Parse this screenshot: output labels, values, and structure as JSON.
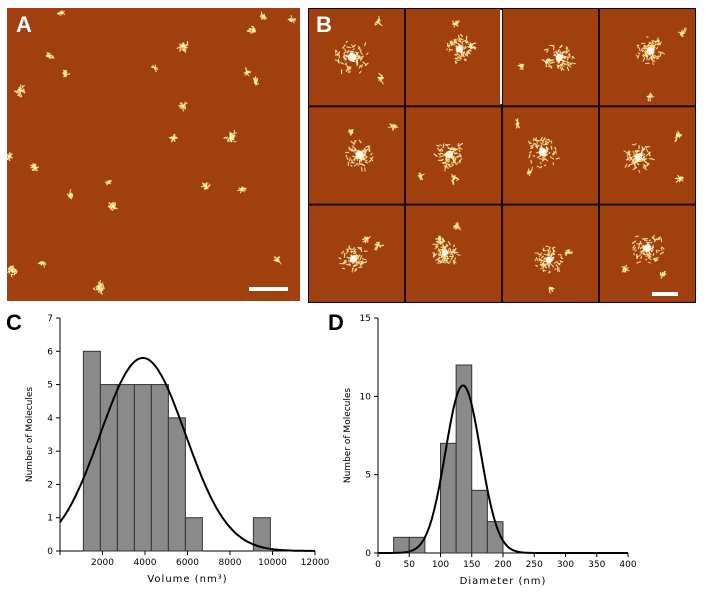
{
  "panels": {
    "a": {
      "letter": "A"
    },
    "b": {
      "letter": "B"
    },
    "c": {
      "letter": "C"
    },
    "d": {
      "letter": "D"
    }
  },
  "colors": {
    "afm_background": "#a0400e",
    "afm_particle": "#ffe9a0",
    "bar_fill": "#8a8a8a",
    "bar_stroke": "#333333",
    "curve": "#000000"
  },
  "chart_data": [
    {
      "type": "bar",
      "panel": "C",
      "xlabel": "Volume (nm³)",
      "ylabel": "Number of Molecules",
      "xlim": [
        0,
        12000
      ],
      "ylim": [
        0,
        7
      ],
      "xticks": [
        0,
        2000,
        4000,
        6000,
        8000,
        10000,
        12000
      ],
      "xtick_labels": [
        "",
        "2000",
        "4000",
        "6000",
        "8000",
        "10000",
        "12000"
      ],
      "yticks": [
        0,
        1,
        2,
        3,
        4,
        5,
        6,
        7
      ],
      "yticks_labels": [
        "0",
        "1",
        "2",
        "3",
        "4",
        "5",
        "6",
        "7"
      ],
      "bin_width": 800,
      "bins": [
        {
          "x": 1500,
          "value": 6
        },
        {
          "x": 2300,
          "value": 5
        },
        {
          "x": 3100,
          "value": 5
        },
        {
          "x": 3900,
          "value": 5
        },
        {
          "x": 4700,
          "value": 5
        },
        {
          "x": 5500,
          "value": 4
        },
        {
          "x": 6300,
          "value": 1
        },
        {
          "x": 9500,
          "value": 1
        }
      ],
      "fit": {
        "kind": "gaussian",
        "center": 3900,
        "sigma": 2000,
        "amplitude": 5.8
      }
    },
    {
      "type": "bar",
      "panel": "D",
      "xlabel": "Diameter (nm)",
      "ylabel": "Number of Molecules",
      "xlim": [
        0,
        400
      ],
      "ylim": [
        0,
        15
      ],
      "xticks": [
        0,
        50,
        100,
        150,
        200,
        250,
        300,
        350,
        400
      ],
      "xtick_labels": [
        "0",
        "50",
        "100",
        "150",
        "200",
        "250",
        "300",
        "350",
        "400"
      ],
      "yticks": [
        0,
        5,
        10,
        15
      ],
      "yticks_labels": [
        "0",
        "5",
        "10",
        "15"
      ],
      "bin_width": 25,
      "bins": [
        {
          "x": 37.5,
          "value": 1
        },
        {
          "x": 62.5,
          "value": 1
        },
        {
          "x": 112.5,
          "value": 7
        },
        {
          "x": 137.5,
          "value": 12
        },
        {
          "x": 162.5,
          "value": 4
        },
        {
          "x": 187.5,
          "value": 2
        }
      ],
      "fit": {
        "kind": "gaussian",
        "center": 136,
        "sigma": 28,
        "amplitude": 10.7
      }
    }
  ]
}
